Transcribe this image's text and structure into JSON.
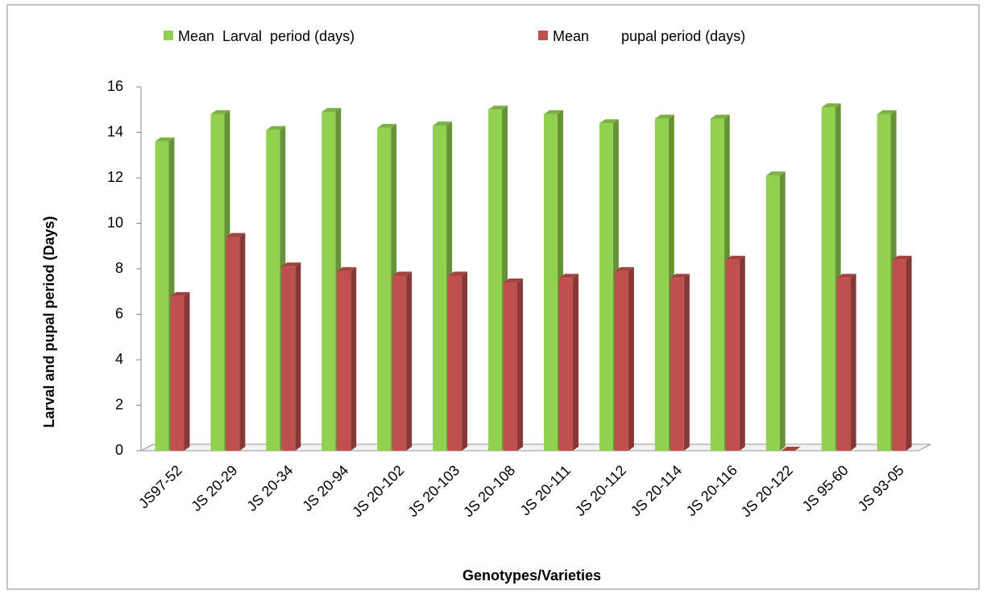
{
  "chart_data": {
    "type": "bar3d",
    "y_label": "Larval and pupal period (Days)",
    "x_label": "Genotypes/Varieties",
    "categories": [
      "JS97-52",
      "JS 20-29",
      "JS 20-34",
      "JS 20-94",
      "JS 20-102",
      "JS 20-103",
      "JS 20-108",
      "JS 20-111",
      "JS 20-112",
      "JS 20-114",
      "JS 20-116",
      "JS 20-122",
      "JS 95-60",
      "JS 93-05"
    ],
    "series": [
      {
        "name": "Mean  Larval  period (days)",
        "color": "#92d050",
        "values": [
          13.6,
          14.8,
          14.1,
          14.9,
          14.2,
          14.3,
          15.0,
          14.8,
          14.4,
          14.6,
          14.6,
          12.1,
          15.1,
          14.8
        ]
      },
      {
        "name": "Mean        pupal period (days)",
        "color": "#c0504d",
        "values": [
          6.8,
          9.4,
          8.1,
          7.9,
          7.7,
          7.7,
          7.4,
          7.6,
          7.9,
          7.6,
          8.4,
          0,
          7.6,
          8.4
        ]
      }
    ],
    "ylim": [
      0,
      16
    ],
    "yticks": [
      0,
      2,
      4,
      6,
      8,
      10,
      12,
      14,
      16
    ]
  }
}
